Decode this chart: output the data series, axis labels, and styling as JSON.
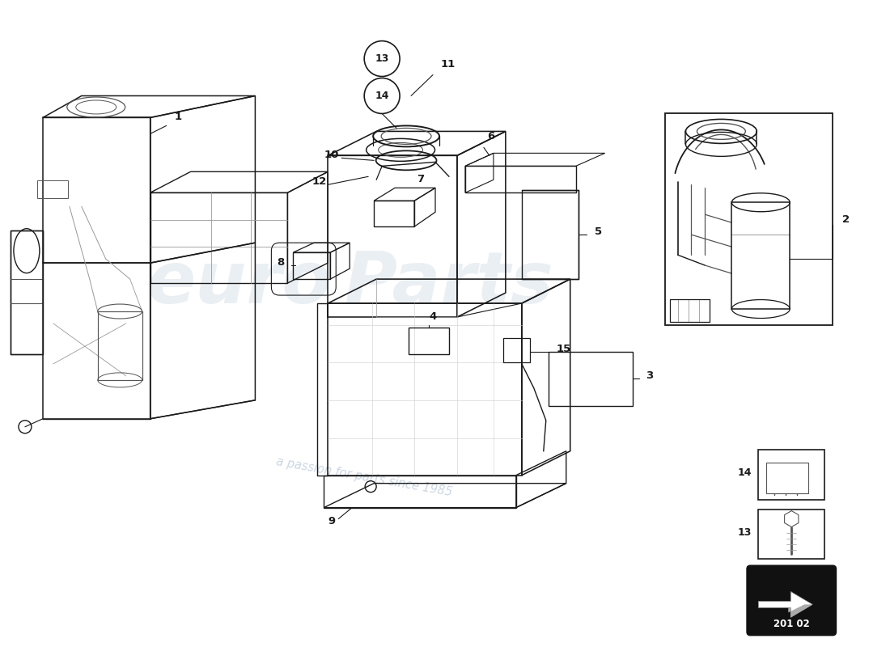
{
  "bg_color": "#ffffff",
  "dk": "#1a1a1a",
  "md": "#555555",
  "lt": "#999999",
  "gd": "#cccccc",
  "diagram_code": "201 02",
  "watermark_sub": "a passion for parts since 1985"
}
